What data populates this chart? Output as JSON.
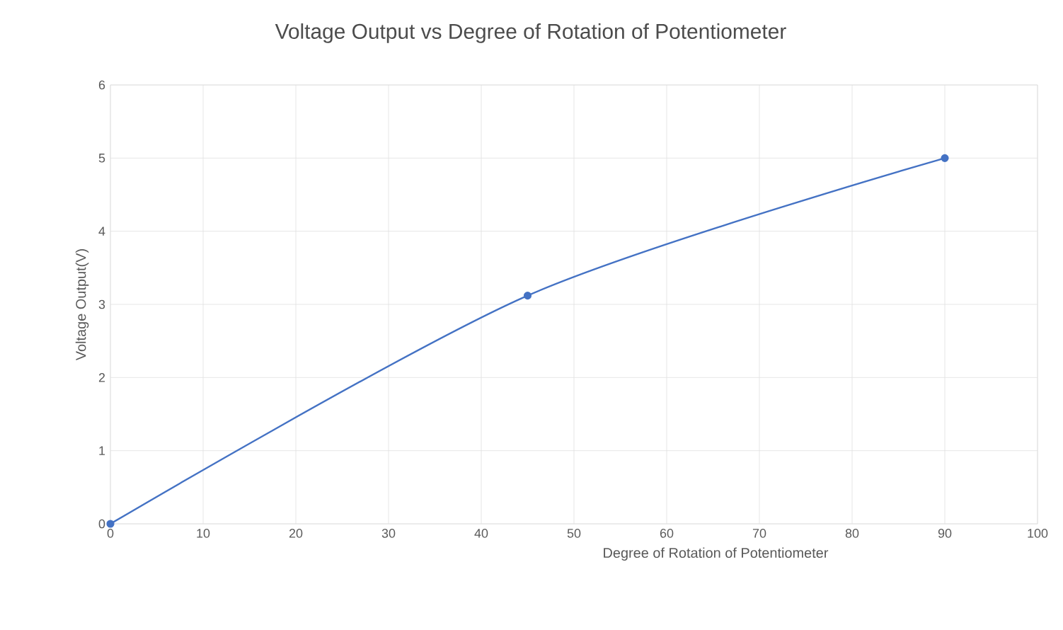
{
  "chart_data": {
    "type": "line",
    "title": "Voltage Output vs Degree of Rotation of Potentiometer",
    "xlabel": "Degree of Rotation of Potentiometer",
    "ylabel": "Voltage Output(V)",
    "x": [
      0,
      45,
      90
    ],
    "series": [
      {
        "color": "#4472c4",
        "values": [
          0,
          3.12,
          5
        ]
      }
    ],
    "xlim": [
      0,
      100
    ],
    "xticks": [
      0,
      10,
      20,
      30,
      40,
      50,
      60,
      70,
      80,
      90,
      100
    ],
    "ylim": [
      0,
      6
    ],
    "yticks": [
      0,
      1,
      2,
      3,
      4,
      5,
      6
    ],
    "grid": true,
    "marker": "circle",
    "line_style": "solid"
  }
}
